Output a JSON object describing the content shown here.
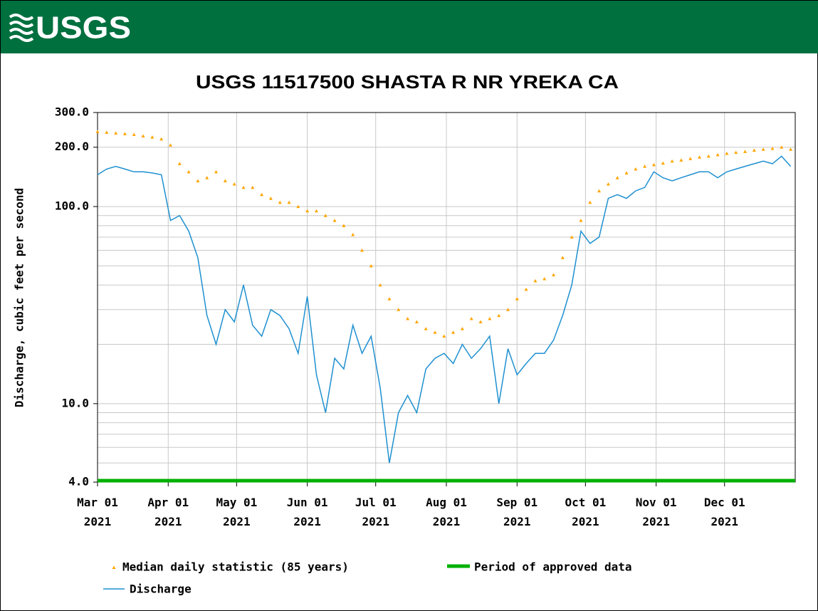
{
  "agency_logo": "USGS",
  "chart_data": {
    "type": "line",
    "title": "USGS 11517500 SHASTA R NR YREKA CA",
    "ylabel": "Discharge, cubic feet per second",
    "ylog": true,
    "grid": true,
    "ylim": [
      4,
      300
    ],
    "yticks": [
      {
        "value": 4,
        "label": "4.0"
      },
      {
        "value": 10,
        "label": "10.0"
      },
      {
        "value": 100,
        "label": "100.0"
      },
      {
        "value": 200,
        "label": "200.0"
      },
      {
        "value": 300,
        "label": "300.0"
      }
    ],
    "minor_yticks": [
      5,
      6,
      7,
      8,
      9,
      20,
      30,
      40,
      50,
      60,
      70,
      80,
      90
    ],
    "xlim": [
      "2021-03-01",
      "2022-01-01"
    ],
    "xticks": [
      {
        "value": "2021-03-01",
        "label": "Mar 01",
        "year": "2021"
      },
      {
        "value": "2021-04-01",
        "label": "Apr 01",
        "year": "2021"
      },
      {
        "value": "2021-05-01",
        "label": "May 01",
        "year": "2021"
      },
      {
        "value": "2021-06-01",
        "label": "Jun 01",
        "year": "2021"
      },
      {
        "value": "2021-07-01",
        "label": "Jul 01",
        "year": "2021"
      },
      {
        "value": "2021-08-01",
        "label": "Aug 01",
        "year": "2021"
      },
      {
        "value": "2021-09-01",
        "label": "Sep 01",
        "year": "2021"
      },
      {
        "value": "2021-10-01",
        "label": "Oct 01",
        "year": "2021"
      },
      {
        "value": "2021-11-01",
        "label": "Nov 01",
        "year": "2021"
      },
      {
        "value": "2021-12-01",
        "label": "Dec 01",
        "year": "2021"
      }
    ],
    "x": [
      "2021-03-01",
      "2021-03-05",
      "2021-03-09",
      "2021-03-13",
      "2021-03-17",
      "2021-03-21",
      "2021-03-25",
      "2021-03-29",
      "2021-04-02",
      "2021-04-06",
      "2021-04-10",
      "2021-04-14",
      "2021-04-18",
      "2021-04-22",
      "2021-04-26",
      "2021-04-30",
      "2021-05-04",
      "2021-05-08",
      "2021-05-12",
      "2021-05-16",
      "2021-05-20",
      "2021-05-24",
      "2021-05-28",
      "2021-06-01",
      "2021-06-05",
      "2021-06-09",
      "2021-06-13",
      "2021-06-17",
      "2021-06-21",
      "2021-06-25",
      "2021-06-29",
      "2021-07-03",
      "2021-07-07",
      "2021-07-11",
      "2021-07-15",
      "2021-07-19",
      "2021-07-23",
      "2021-07-27",
      "2021-07-31",
      "2021-08-04",
      "2021-08-08",
      "2021-08-12",
      "2021-08-16",
      "2021-08-20",
      "2021-08-24",
      "2021-08-28",
      "2021-09-01",
      "2021-09-05",
      "2021-09-09",
      "2021-09-13",
      "2021-09-17",
      "2021-09-21",
      "2021-09-25",
      "2021-09-29",
      "2021-10-03",
      "2021-10-07",
      "2021-10-11",
      "2021-10-15",
      "2021-10-19",
      "2021-10-23",
      "2021-10-27",
      "2021-10-31",
      "2021-11-04",
      "2021-11-08",
      "2021-11-12",
      "2021-11-16",
      "2021-11-20",
      "2021-11-24",
      "2021-11-28",
      "2021-12-02",
      "2021-12-06",
      "2021-12-10",
      "2021-12-14",
      "2021-12-18",
      "2021-12-22",
      "2021-12-26",
      "2021-12-30"
    ],
    "series": [
      {
        "name": "Median daily statistic (85 years)",
        "color": "#ffa500",
        "mode": "markers",
        "values": [
          240,
          238,
          236,
          234,
          232,
          228,
          225,
          220,
          205,
          165,
          150,
          135,
          140,
          150,
          135,
          130,
          125,
          125,
          115,
          110,
          105,
          105,
          100,
          95,
          95,
          90,
          85,
          80,
          72,
          60,
          50,
          40,
          34,
          30,
          27,
          26,
          24,
          23,
          22,
          23,
          24,
          27,
          26,
          27,
          28,
          30,
          34,
          38,
          42,
          43,
          45,
          55,
          70,
          85,
          105,
          120,
          130,
          140,
          148,
          155,
          160,
          163,
          166,
          170,
          172,
          175,
          178,
          180,
          183,
          186,
          188,
          190,
          193,
          195,
          197,
          200,
          195
        ]
      },
      {
        "name": "Discharge",
        "color": "#1e90d0",
        "mode": "line",
        "values": [
          145,
          155,
          160,
          155,
          150,
          150,
          148,
          145,
          85,
          90,
          75,
          55,
          28,
          20,
          30,
          26,
          40,
          25,
          22,
          30,
          28,
          24,
          18,
          35,
          14,
          9,
          17,
          15,
          25,
          18,
          22,
          12,
          5,
          9,
          11,
          9,
          15,
          17,
          18,
          16,
          20,
          17,
          19,
          22,
          10,
          19,
          14,
          16,
          18,
          18,
          21,
          28,
          40,
          75,
          65,
          70,
          110,
          115,
          110,
          120,
          125,
          150,
          140,
          135,
          140,
          145,
          150,
          150,
          140,
          150,
          155,
          160,
          165,
          170,
          165,
          180,
          160
        ]
      }
    ],
    "bands": [
      {
        "name": "Period of approved data",
        "color": "#00b000",
        "start": "2021-03-01",
        "end": "2022-01-01"
      }
    ]
  }
}
